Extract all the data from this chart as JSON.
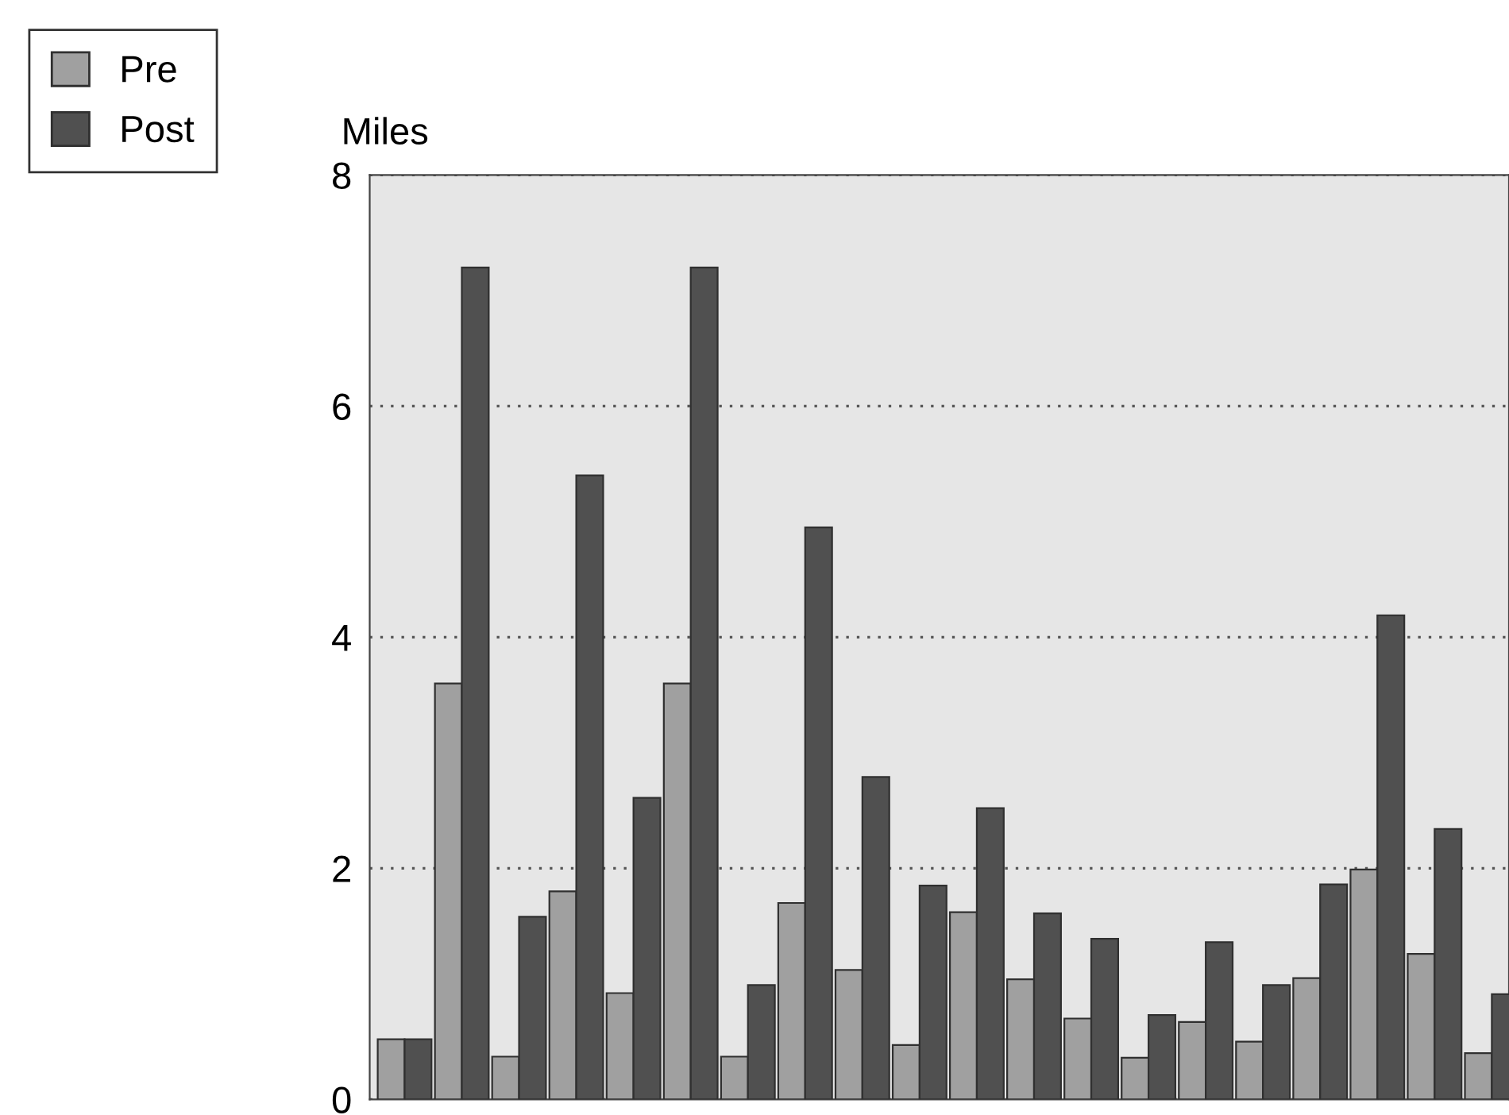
{
  "chart_data": {
    "type": "bar",
    "ylabel": "Miles",
    "categories": [
      null,
      null,
      null,
      null,
      null,
      null,
      null,
      null,
      null,
      null,
      null,
      null,
      null,
      null,
      null,
      null,
      null,
      null,
      null,
      null
    ],
    "series": [
      {
        "name": "Pre",
        "color": "#a0a0a0",
        "values": [
          0.52,
          3.6,
          0.37,
          1.8,
          0.92,
          3.6,
          0.37,
          1.7,
          1.12,
          0.47,
          1.62,
          1.04,
          0.7,
          0.36,
          0.67,
          0.5,
          1.05,
          1.99,
          1.26,
          0.4
        ]
      },
      {
        "name": "Post",
        "color": "#505050",
        "values": [
          0.52,
          7.2,
          1.58,
          5.4,
          2.61,
          7.2,
          0.99,
          4.95,
          2.79,
          1.85,
          2.52,
          1.61,
          1.39,
          0.73,
          1.36,
          0.99,
          1.86,
          4.19,
          2.34,
          0.91
        ]
      }
    ],
    "ylim": [
      0,
      8
    ],
    "yticks": [
      0,
      2,
      4,
      6,
      8
    ],
    "grid": "y",
    "legend": "top left"
  }
}
